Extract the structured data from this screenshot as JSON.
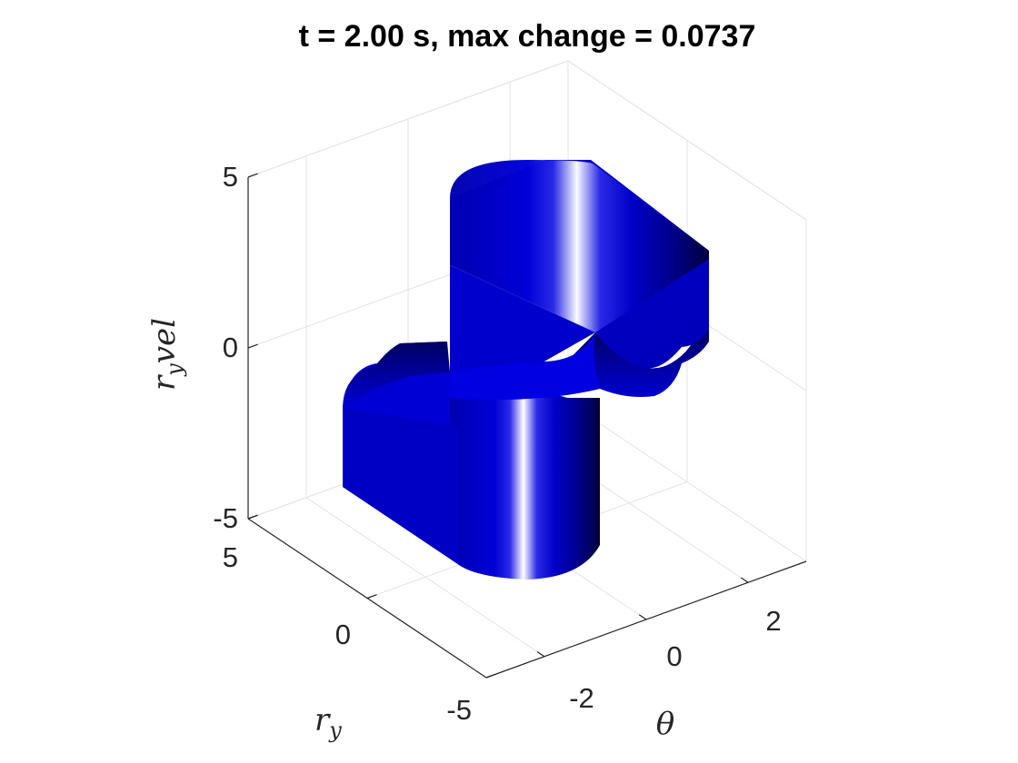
{
  "chart_data": {
    "type": "surface3d",
    "title": "t = 2.00 s, max change = 0.0737",
    "xlabel": "θ",
    "ylabel": "r_y",
    "zlabel": "r_y vel",
    "xlabel_parts": {
      "base": "θ"
    },
    "ylabel_parts": {
      "base": "r",
      "sub": "y"
    },
    "zlabel_parts": {
      "base": "r",
      "sub": "y",
      "rest": "vel"
    },
    "xlim": [
      -3.14,
      3.14
    ],
    "ylim": [
      -5,
      5
    ],
    "zlim": [
      -5,
      5
    ],
    "xticks": [
      -2,
      0,
      2
    ],
    "yticks": [
      -5,
      0,
      5
    ],
    "zticks": [
      -5,
      0,
      5
    ],
    "xtick_labels": [
      "-2",
      "0",
      "2"
    ],
    "ytick_labels": [
      "-5",
      "0",
      "5"
    ],
    "ztick_labels": [
      "-5",
      "0",
      "5"
    ],
    "grid": true,
    "colors": {
      "surface_dark": "#00003a",
      "surface_mid": "#0000d8",
      "surface_light": "#ffffff",
      "grid": "#e3e3e3",
      "axis": "#262626"
    },
    "surface": {
      "description_free": true,
      "theta_range": [
        -3.14,
        3.14
      ],
      "upper_block": {
        "r_y": [
          -0.3,
          3.6
        ],
        "r_y_vel": [
          -1.0,
          4.7
        ]
      },
      "lower_block": {
        "r_y": [
          -3.6,
          0.3
        ],
        "r_y_vel": [
          -4.7,
          1.0
        ]
      }
    }
  }
}
